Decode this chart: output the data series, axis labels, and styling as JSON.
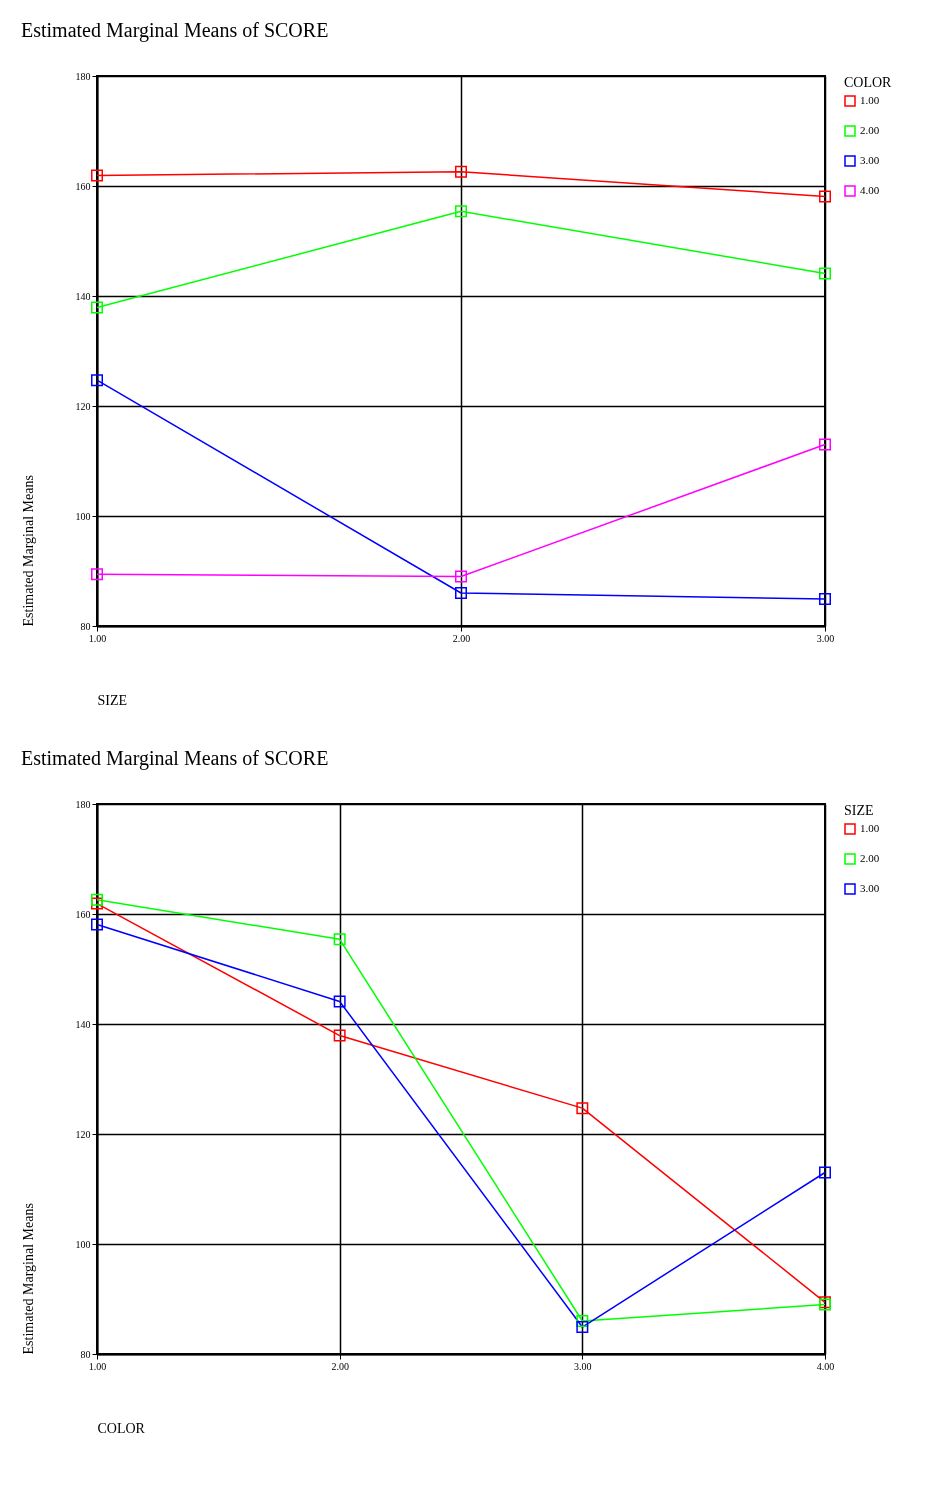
{
  "chart_data": [
    {
      "type": "line",
      "title": "Estimated Marginal Means of SCORE",
      "xlabel": "SIZE",
      "ylabel": "Estimated Marginal Means",
      "legend_title": "COLOR",
      "x": [
        1,
        2,
        3
      ],
      "xlim": [
        1,
        3
      ],
      "xticks": [
        {
          "value": 1,
          "label": "1.00"
        },
        {
          "value": 2,
          "label": "2.00"
        },
        {
          "value": 3,
          "label": "3.00"
        }
      ],
      "ylim": [
        80,
        180
      ],
      "yticks": [
        80,
        100,
        120,
        140,
        160,
        180
      ],
      "grid": true,
      "legend": "right",
      "marker": "square",
      "line_style": "solid",
      "series": [
        {
          "name": "1.00",
          "color": "#ff0000",
          "values": [
            161.9,
            162.6,
            158.1
          ]
        },
        {
          "name": "2.00",
          "color": "#00ff00",
          "values": [
            137.9,
            155.4,
            144.1
          ]
        },
        {
          "name": "3.00",
          "color": "#0000ff",
          "values": [
            124.7,
            86.0,
            84.9
          ]
        },
        {
          "name": "4.00",
          "color": "#ff00ff",
          "values": [
            89.4,
            89.0,
            113.0
          ]
        }
      ]
    },
    {
      "type": "line",
      "title": "Estimated Marginal Means of SCORE",
      "xlabel": "COLOR",
      "ylabel": "Estimated Marginal Means",
      "legend_title": "SIZE",
      "x": [
        1,
        2,
        3,
        4
      ],
      "xlim": [
        1,
        4
      ],
      "xticks": [
        {
          "value": 1,
          "label": "1.00"
        },
        {
          "value": 2,
          "label": "2.00"
        },
        {
          "value": 3,
          "label": "3.00"
        },
        {
          "value": 4,
          "label": "4.00"
        }
      ],
      "ylim": [
        80,
        180
      ],
      "yticks": [
        80,
        100,
        120,
        140,
        160,
        180
      ],
      "grid": true,
      "legend": "right",
      "marker": "square",
      "line_style": "solid",
      "series": [
        {
          "name": "1.00",
          "color": "#ff0000",
          "values": [
            161.9,
            137.9,
            124.7,
            89.4
          ]
        },
        {
          "name": "2.00",
          "color": "#00ff00",
          "values": [
            162.6,
            155.4,
            86.0,
            89.0
          ]
        },
        {
          "name": "3.00",
          "color": "#0000ff",
          "values": [
            158.1,
            144.1,
            84.9,
            113.0
          ]
        }
      ]
    }
  ]
}
